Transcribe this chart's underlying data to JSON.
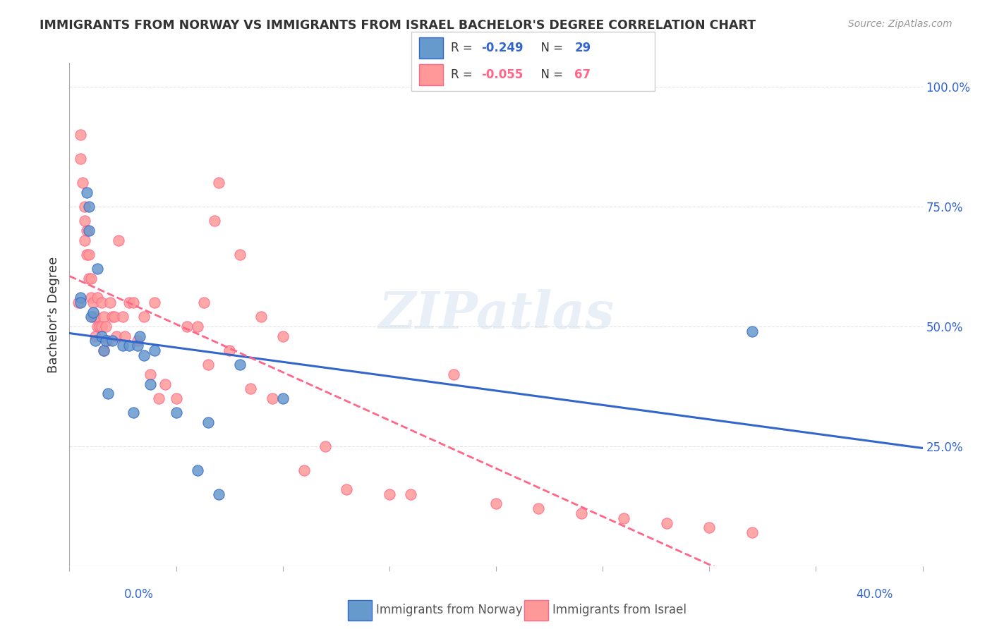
{
  "title": "IMMIGRANTS FROM NORWAY VS IMMIGRANTS FROM ISRAEL BACHELOR'S DEGREE CORRELATION CHART",
  "source": "Source: ZipAtlas.com",
  "ylabel": "Bachelor's Degree",
  "right_yticks": [
    "25.0%",
    "50.0%",
    "75.0%",
    "100.0%"
  ],
  "right_ytick_vals": [
    0.25,
    0.5,
    0.75,
    1.0
  ],
  "xlim": [
    0.0,
    0.4
  ],
  "ylim": [
    0.0,
    1.05
  ],
  "norway_R": -0.249,
  "norway_N": 29,
  "israel_R": -0.055,
  "israel_N": 67,
  "norway_color": "#6699CC",
  "israel_color": "#FF9999",
  "norway_line_color": "#3366CC",
  "israel_line_color": "#FF6688",
  "norway_x": [
    0.005,
    0.005,
    0.008,
    0.009,
    0.009,
    0.01,
    0.011,
    0.012,
    0.013,
    0.015,
    0.016,
    0.017,
    0.018,
    0.02,
    0.025,
    0.028,
    0.03,
    0.032,
    0.033,
    0.035,
    0.038,
    0.04,
    0.05,
    0.06,
    0.065,
    0.07,
    0.08,
    0.1,
    0.32
  ],
  "norway_y": [
    0.56,
    0.55,
    0.78,
    0.75,
    0.7,
    0.52,
    0.53,
    0.47,
    0.62,
    0.48,
    0.45,
    0.47,
    0.36,
    0.47,
    0.46,
    0.46,
    0.32,
    0.46,
    0.48,
    0.44,
    0.38,
    0.45,
    0.32,
    0.2,
    0.3,
    0.15,
    0.42,
    0.35,
    0.49
  ],
  "israel_x": [
    0.004,
    0.005,
    0.005,
    0.006,
    0.007,
    0.007,
    0.007,
    0.008,
    0.008,
    0.009,
    0.009,
    0.01,
    0.01,
    0.011,
    0.011,
    0.012,
    0.012,
    0.013,
    0.013,
    0.014,
    0.015,
    0.015,
    0.016,
    0.016,
    0.017,
    0.018,
    0.019,
    0.02,
    0.021,
    0.022,
    0.023,
    0.025,
    0.026,
    0.028,
    0.03,
    0.032,
    0.035,
    0.038,
    0.04,
    0.042,
    0.045,
    0.05,
    0.055,
    0.06,
    0.063,
    0.065,
    0.068,
    0.07,
    0.075,
    0.08,
    0.085,
    0.09,
    0.095,
    0.1,
    0.11,
    0.12,
    0.13,
    0.15,
    0.16,
    0.18,
    0.2,
    0.22,
    0.24,
    0.26,
    0.28,
    0.3,
    0.32
  ],
  "israel_y": [
    0.55,
    0.9,
    0.85,
    0.8,
    0.75,
    0.72,
    0.68,
    0.7,
    0.65,
    0.65,
    0.6,
    0.6,
    0.56,
    0.55,
    0.52,
    0.52,
    0.48,
    0.56,
    0.5,
    0.5,
    0.55,
    0.5,
    0.52,
    0.45,
    0.5,
    0.47,
    0.55,
    0.52,
    0.52,
    0.48,
    0.68,
    0.52,
    0.48,
    0.55,
    0.55,
    0.47,
    0.52,
    0.4,
    0.55,
    0.35,
    0.38,
    0.35,
    0.5,
    0.5,
    0.55,
    0.42,
    0.72,
    0.8,
    0.45,
    0.65,
    0.37,
    0.52,
    0.35,
    0.48,
    0.2,
    0.25,
    0.16,
    0.15,
    0.15,
    0.4,
    0.13,
    0.12,
    0.11,
    0.1,
    0.09,
    0.08,
    0.07
  ],
  "watermark": "ZIPatlas",
  "background_color": "#FFFFFF",
  "grid_color": "#DDDDDD"
}
